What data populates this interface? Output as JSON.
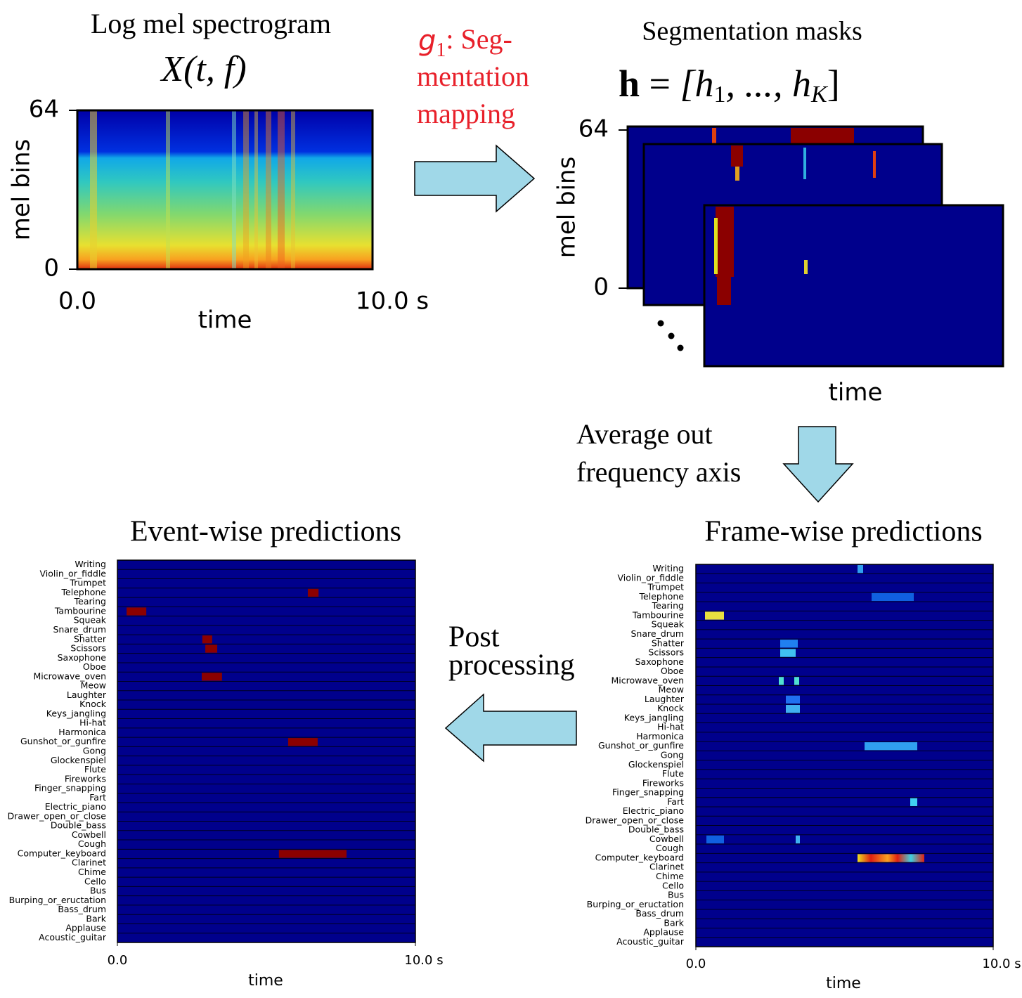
{
  "spectrogram": {
    "title": "Log mel spectrogram",
    "formula": "X(t, f)",
    "y_label": "mel bins",
    "ylim": [
      0,
      64
    ],
    "yticks": [
      64,
      0
    ],
    "xlim": [
      0,
      10
    ],
    "xticks": [
      {
        "value": 0,
        "label": "0.0"
      },
      {
        "value": 10,
        "label": "10.0 s"
      }
    ],
    "x_label": "time"
  },
  "mapping": {
    "symbol": "g",
    "subscript": "1",
    "lines": [
      ": Seg-",
      "mentation",
      "mapping"
    ]
  },
  "masks": {
    "title": "Segmentation masks",
    "formula": {
      "vector": "h",
      "equals": " = ",
      "open": "[h",
      "first_index": "1",
      "middle": ", ..., h",
      "last_index": "K",
      "close": "]"
    },
    "y_label": "mel bins",
    "ylim": [
      0,
      64
    ],
    "yticks": [
      64,
      0
    ],
    "x_label": "time"
  },
  "averaging": {
    "lines": [
      "Average out",
      "frequency axis"
    ]
  },
  "frame_wise": {
    "title": "Frame-wise predictions",
    "xlim": [
      0,
      10
    ],
    "xticks": [
      {
        "value": 0,
        "label": "0.0"
      },
      {
        "value": 10,
        "label": "10.0 s"
      }
    ],
    "x_label": "time"
  },
  "post_processing": {
    "lines": [
      "Post",
      "processing"
    ]
  },
  "event_wise": {
    "title": "Event-wise predictions",
    "xlim": [
      0,
      10
    ],
    "xticks": [
      {
        "value": 0,
        "label": "0.0"
      },
      {
        "value": 10,
        "label": "10.0 s"
      }
    ],
    "x_label": "time",
    "events": [
      {
        "row": 3,
        "start": 6.39,
        "end": 6.75
      },
      {
        "row": 5,
        "start": 0.31,
        "end": 0.97
      },
      {
        "row": 8,
        "start": 2.85,
        "end": 3.18
      },
      {
        "row": 9,
        "start": 2.95,
        "end": 3.35
      },
      {
        "row": 12,
        "start": 2.83,
        "end": 3.51
      },
      {
        "row": 19,
        "start": 5.73,
        "end": 6.72
      },
      {
        "row": 31,
        "start": 5.42,
        "end": 7.69
      }
    ]
  },
  "classes": [
    "Writing",
    "Violin_or_fiddle",
    "Trumpet",
    "Telephone",
    "Tearing",
    "Tambourine",
    "Squeak",
    "Snare_drum",
    "Shatter",
    "Scissors",
    "Saxophone",
    "Oboe",
    "Microwave_oven",
    "Meow",
    "Laughter",
    "Knock",
    "Keys_jangling",
    "Hi-hat",
    "Harmonica",
    "Gunshot_or_gunfire",
    "Gong",
    "Glockenspiel",
    "Flute",
    "Fireworks",
    "Finger_snapping",
    "Fart",
    "Electric_piano",
    "Drawer_open_or_close",
    "Double_bass",
    "Cowbell",
    "Cough",
    "Computer_keyboard",
    "Clarinet",
    "Chime",
    "Cello",
    "Bus",
    "Burping_or_eructation",
    "Bass_drum",
    "Bark",
    "Applause",
    "Acoustic_guitar"
  ]
}
